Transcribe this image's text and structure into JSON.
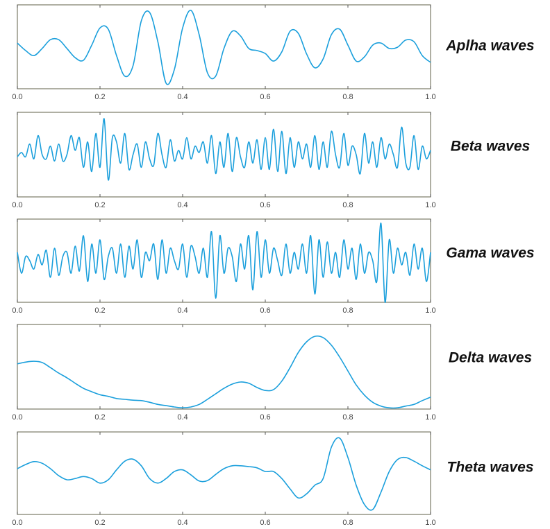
{
  "chart_data": [
    {
      "type": "line",
      "title": "Aplha waves",
      "color": "#1a9fdc",
      "xlim": [
        0,
        1
      ],
      "ylim": [
        -1,
        1
      ],
      "xticks": [
        {
          "value": 0,
          "label": "0.0"
        },
        0.2,
        0.4,
        0.6,
        0.8,
        {
          "value": 1,
          "label": "1.0"
        }
      ],
      "x": [
        0,
        0.02,
        0.04,
        0.06,
        0.08,
        0.1,
        0.12,
        0.14,
        0.16,
        0.18,
        0.2,
        0.22,
        0.24,
        0.26,
        0.28,
        0.3,
        0.32,
        0.34,
        0.36,
        0.38,
        0.4,
        0.42,
        0.44,
        0.46,
        0.48,
        0.5,
        0.52,
        0.54,
        0.56,
        0.58,
        0.6,
        0.62,
        0.64,
        0.66,
        0.68,
        0.7,
        0.72,
        0.74,
        0.76,
        0.78,
        0.8,
        0.82,
        0.84,
        0.86,
        0.88,
        0.9,
        0.92,
        0.94,
        0.96,
        0.98,
        1
      ],
      "values": [
        0.09,
        -0.09,
        -0.21,
        -0.04,
        0.17,
        0.17,
        -0.04,
        -0.26,
        -0.32,
        0.04,
        0.45,
        0.42,
        -0.21,
        -0.7,
        -0.45,
        0.62,
        0.82,
        0.12,
        -0.87,
        -0.54,
        0.45,
        0.87,
        0.29,
        -0.62,
        -0.7,
        -0.04,
        0.37,
        0.26,
        -0.04,
        -0.09,
        -0.16,
        -0.34,
        -0.12,
        0.37,
        0.32,
        -0.17,
        -0.5,
        -0.29,
        0.29,
        0.42,
        0.04,
        -0.34,
        -0.24,
        0.04,
        0.09,
        -0.04,
        -0.01,
        0.16,
        0.12,
        -0.21,
        -0.37
      ]
    },
    {
      "type": "line",
      "title": "Beta waves",
      "color": "#1a9fdc",
      "xlim": [
        0,
        1
      ],
      "ylim": [
        -1,
        1
      ],
      "xticks": [
        {
          "value": 0,
          "label": "0.0"
        },
        0.2,
        0.4,
        0.6,
        0.8,
        {
          "value": 1,
          "label": "1.0"
        }
      ],
      "x": [
        0,
        0.01,
        0.02,
        0.03,
        0.04,
        0.05,
        0.06,
        0.07,
        0.08,
        0.09,
        0.1,
        0.11,
        0.12,
        0.13,
        0.14,
        0.15,
        0.16,
        0.17,
        0.18,
        0.19,
        0.2,
        0.21,
        0.22,
        0.23,
        0.24,
        0.25,
        0.26,
        0.27,
        0.28,
        0.29,
        0.3,
        0.31,
        0.32,
        0.33,
        0.34,
        0.35,
        0.36,
        0.37,
        0.38,
        0.39,
        0.4,
        0.41,
        0.42,
        0.43,
        0.44,
        0.45,
        0.46,
        0.47,
        0.48,
        0.49,
        0.5,
        0.51,
        0.52,
        0.53,
        0.54,
        0.55,
        0.56,
        0.57,
        0.58,
        0.59,
        0.6,
        0.61,
        0.62,
        0.63,
        0.64,
        0.65,
        0.66,
        0.67,
        0.68,
        0.69,
        0.7,
        0.71,
        0.72,
        0.73,
        0.74,
        0.75,
        0.76,
        0.77,
        0.78,
        0.79,
        0.8,
        0.81,
        0.82,
        0.83,
        0.84,
        0.85,
        0.86,
        0.87,
        0.88,
        0.89,
        0.9,
        0.91,
        0.92,
        0.93,
        0.94,
        0.95,
        0.96,
        0.97,
        0.98,
        0.99,
        1
      ],
      "values": [
        -0.05,
        0.05,
        -0.05,
        0.25,
        -0.1,
        0.45,
        0,
        -0.1,
        0.2,
        -0.15,
        0.25,
        -0.15,
        0,
        0.45,
        0.1,
        0.4,
        -0.3,
        0.3,
        -0.4,
        0.5,
        -0.3,
        0.85,
        -0.6,
        0.4,
        0.3,
        -0.2,
        0.5,
        -0.35,
        0,
        0.25,
        -0.3,
        0.3,
        -0.1,
        -0.25,
        0.5,
        0,
        -0.3,
        0.35,
        -0.15,
        0.1,
        -0.1,
        0.4,
        -0.1,
        0.2,
        0.05,
        0.3,
        -0.2,
        0.45,
        -0.45,
        0.3,
        -0.3,
        0.5,
        -0.4,
        0.4,
        -0.05,
        -0.3,
        0.3,
        -0.2,
        0.35,
        -0.35,
        0.4,
        -0.35,
        0.6,
        -0.4,
        0.55,
        -0.45,
        0.4,
        -0.3,
        0.3,
        -0.1,
        0.25,
        -0.3,
        0.45,
        -0.35,
        0.3,
        -0.3,
        0.55,
        0,
        -0.3,
        0.5,
        -0.25,
        0.2,
        0,
        -0.45,
        0.5,
        -0.2,
        0.3,
        -0.3,
        0.4,
        -0.1,
        0.25,
        0,
        -0.3,
        0.65,
        -0.2,
        -0.3,
        0.45,
        -0.35,
        0.2,
        -0.1,
        0.1
      ]
    },
    {
      "type": "line",
      "title": "Gama waves",
      "color": "#1a9fdc",
      "xlim": [
        0,
        1
      ],
      "ylim": [
        -1,
        1
      ],
      "xticks": [
        {
          "value": 0,
          "label": "0.0"
        },
        0.2,
        0.4,
        0.6,
        0.8,
        {
          "value": 1,
          "label": "1.0"
        }
      ],
      "x": [
        0,
        0.01,
        0.02,
        0.03,
        0.04,
        0.05,
        0.06,
        0.07,
        0.08,
        0.09,
        0.1,
        0.11,
        0.12,
        0.13,
        0.14,
        0.15,
        0.16,
        0.17,
        0.18,
        0.19,
        0.2,
        0.21,
        0.22,
        0.23,
        0.24,
        0.25,
        0.26,
        0.27,
        0.28,
        0.29,
        0.3,
        0.31,
        0.32,
        0.33,
        0.34,
        0.35,
        0.36,
        0.37,
        0.38,
        0.39,
        0.4,
        0.41,
        0.42,
        0.43,
        0.44,
        0.45,
        0.46,
        0.47,
        0.48,
        0.49,
        0.5,
        0.51,
        0.52,
        0.53,
        0.54,
        0.55,
        0.56,
        0.57,
        0.58,
        0.59,
        0.6,
        0.61,
        0.62,
        0.63,
        0.64,
        0.65,
        0.66,
        0.67,
        0.68,
        0.69,
        0.7,
        0.71,
        0.72,
        0.73,
        0.74,
        0.75,
        0.76,
        0.77,
        0.78,
        0.79,
        0.8,
        0.81,
        0.82,
        0.83,
        0.84,
        0.85,
        0.86,
        0.87,
        0.88,
        0.89,
        0.9,
        0.91,
        0.92,
        0.93,
        0.94,
        0.95,
        0.96,
        0.97,
        0.98,
        0.99,
        1
      ],
      "values": [
        0.2,
        -0.3,
        0.1,
        0,
        -0.2,
        0.15,
        -0.1,
        0.25,
        -0.4,
        0.3,
        -0.35,
        0.1,
        0.2,
        -0.3,
        0.35,
        -0.25,
        0.6,
        -0.5,
        0.4,
        -0.3,
        0.5,
        -0.45,
        0.1,
        0.3,
        -0.3,
        0.4,
        -0.4,
        0.35,
        -0.2,
        0.5,
        -0.4,
        0.2,
        0,
        0.4,
        -0.45,
        0.5,
        -0.3,
        0.3,
        0,
        -0.2,
        0.4,
        -0.4,
        0.35,
        0.1,
        -0.3,
        0.3,
        -0.4,
        0.7,
        -0.9,
        0.6,
        -0.3,
        0.3,
        0.1,
        -0.5,
        0.4,
        -0.2,
        0.6,
        -0.7,
        0.7,
        -0.4,
        0.5,
        -0.3,
        0.3,
        0,
        -0.35,
        0.4,
        -0.3,
        0.2,
        -0.2,
        0.4,
        -0.3,
        0.6,
        -0.8,
        0.5,
        -0.4,
        0.45,
        -0.3,
        0.2,
        -0.4,
        0.5,
        -0.2,
        0.3,
        -0.45,
        0.4,
        -0.3,
        0.2,
        0,
        -0.5,
        0.9,
        -1,
        0.5,
        -0.3,
        0.3,
        -0.1,
        0.2,
        -0.35,
        0.4,
        -0.2,
        0.3,
        -0.5,
        0.2
      ]
    },
    {
      "type": "line",
      "title": "Delta waves",
      "color": "#1a9fdc",
      "xlim": [
        0,
        1
      ],
      "ylim": [
        -1,
        1
      ],
      "xticks": [
        {
          "value": 0,
          "label": "0.0"
        },
        0.2,
        0.4,
        0.6,
        0.8,
        {
          "value": 1,
          "label": "1.0"
        }
      ],
      "x": [
        0,
        0.02,
        0.04,
        0.06,
        0.08,
        0.1,
        0.12,
        0.14,
        0.16,
        0.18,
        0.2,
        0.22,
        0.24,
        0.26,
        0.28,
        0.3,
        0.32,
        0.34,
        0.36,
        0.38,
        0.4,
        0.42,
        0.44,
        0.46,
        0.48,
        0.5,
        0.52,
        0.54,
        0.56,
        0.58,
        0.6,
        0.62,
        0.64,
        0.66,
        0.68,
        0.7,
        0.72,
        0.74,
        0.76,
        0.78,
        0.8,
        0.82,
        0.84,
        0.86,
        0.88,
        0.9,
        0.92,
        0.94,
        0.96,
        0.98,
        1
      ],
      "values": [
        0.07,
        0.11,
        0.13,
        0.1,
        -0.02,
        -0.15,
        -0.26,
        -0.39,
        -0.51,
        -0.59,
        -0.66,
        -0.7,
        -0.75,
        -0.77,
        -0.79,
        -0.8,
        -0.84,
        -0.89,
        -0.92,
        -0.95,
        -0.97,
        -0.95,
        -0.89,
        -0.77,
        -0.64,
        -0.51,
        -0.41,
        -0.36,
        -0.39,
        -0.49,
        -0.56,
        -0.54,
        -0.34,
        -0.02,
        0.34,
        0.59,
        0.72,
        0.69,
        0.51,
        0.23,
        -0.1,
        -0.43,
        -0.67,
        -0.84,
        -0.93,
        -0.97,
        -0.97,
        -0.93,
        -0.89,
        -0.8,
        -0.72
      ]
    },
    {
      "type": "line",
      "title": "Theta waves",
      "color": "#1a9fdc",
      "xlim": [
        0,
        1
      ],
      "ylim": [
        -1,
        1
      ],
      "xticks": [
        {
          "value": 0,
          "label": "0.0"
        },
        0.2,
        0.4,
        0.6,
        0.8,
        {
          "value": 1,
          "label": "1.0"
        }
      ],
      "x": [
        0,
        0.02,
        0.04,
        0.06,
        0.08,
        0.1,
        0.12,
        0.14,
        0.16,
        0.18,
        0.2,
        0.22,
        0.24,
        0.26,
        0.28,
        0.3,
        0.32,
        0.34,
        0.36,
        0.38,
        0.4,
        0.42,
        0.44,
        0.46,
        0.48,
        0.5,
        0.52,
        0.54,
        0.56,
        0.58,
        0.6,
        0.62,
        0.64,
        0.66,
        0.68,
        0.7,
        0.72,
        0.74,
        0.76,
        0.78,
        0.8,
        0.82,
        0.84,
        0.86,
        0.88,
        0.9,
        0.92,
        0.94,
        0.96,
        0.98,
        1
      ],
      "values": [
        0.11,
        0.21,
        0.28,
        0.24,
        0.11,
        -0.06,
        -0.16,
        -0.13,
        -0.08,
        -0.13,
        -0.24,
        -0.16,
        0.08,
        0.29,
        0.34,
        0.18,
        -0.13,
        -0.24,
        -0.13,
        0.04,
        0.08,
        -0.04,
        -0.19,
        -0.18,
        -0.03,
        0.11,
        0.18,
        0.18,
        0.16,
        0.13,
        0.04,
        0.04,
        -0.13,
        -0.38,
        -0.6,
        -0.5,
        -0.29,
        -0.13,
        0.63,
        0.85,
        0.38,
        -0.29,
        -0.76,
        -0.88,
        -0.46,
        0.04,
        0.33,
        0.38,
        0.29,
        0.18,
        0.08
      ]
    }
  ]
}
